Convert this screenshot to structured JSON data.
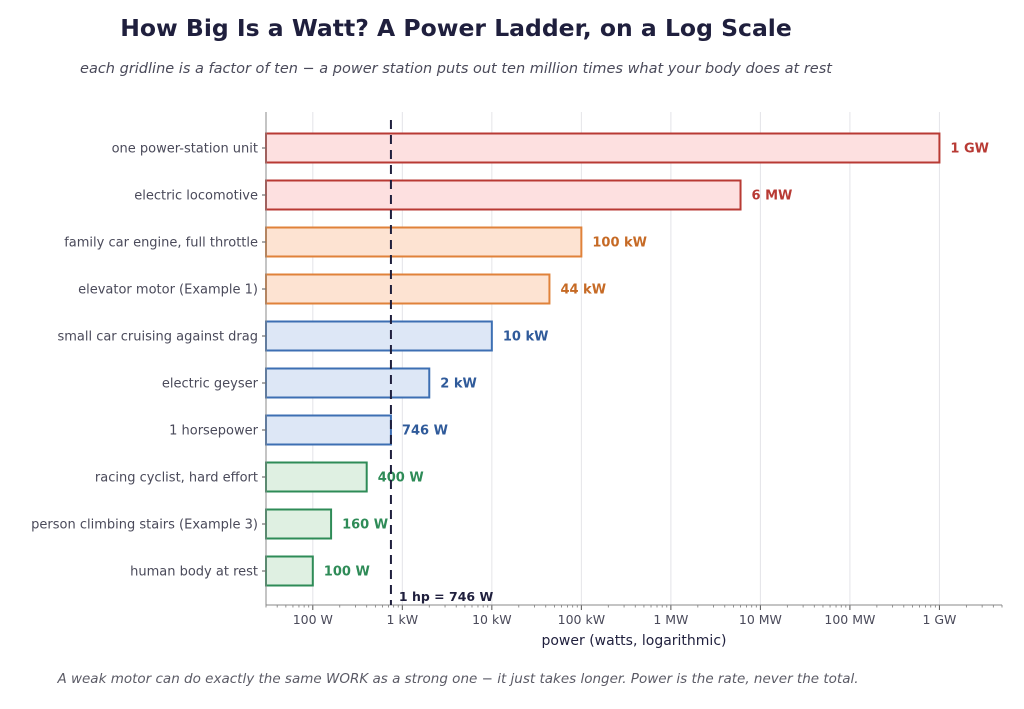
{
  "chart_data": {
    "type": "bar",
    "orientation": "horizontal",
    "title": "How Big Is a Watt?  A Power Ladder, on a Log Scale",
    "subtitle": "each gridline is a factor of ten − a power station puts out ten million times what your body does at rest",
    "xlabel": "power   (watts, logarithmic)",
    "ylabel": "",
    "x_scale": "log",
    "xlim": [
      30,
      5000000000
    ],
    "x_ticks": [
      {
        "value": 100,
        "label": "100 W"
      },
      {
        "value": 1000,
        "label": "1 kW"
      },
      {
        "value": 10000,
        "label": "10 kW"
      },
      {
        "value": 100000,
        "label": "100 kW"
      },
      {
        "value": 1000000,
        "label": "1 MW"
      },
      {
        "value": 10000000,
        "label": "10 MW"
      },
      {
        "value": 100000000,
        "label": "100 MW"
      },
      {
        "value": 1000000000,
        "label": "1 GW"
      }
    ],
    "grid": true,
    "categories": [
      "one power-station unit",
      "electric locomotive",
      "family car engine, full throttle",
      "elevator motor (Example 1)",
      "small car cruising against drag",
      "electric geyser",
      "1 horsepower",
      "racing cyclist, hard effort",
      "person climbing stairs (Example 3)",
      "human body at rest"
    ],
    "values": [
      1000000000,
      6000000,
      100000,
      44000,
      10000,
      2000,
      746,
      400,
      160,
      100
    ],
    "value_labels": [
      "1 GW",
      "6 MW",
      "100 kW",
      "44 kW",
      "10 kW",
      "2 kW",
      "746 W",
      "400 W",
      "160 W",
      "100 W"
    ],
    "bar_colors": [
      {
        "fill": "#fde0e0",
        "stroke": "#b83a34",
        "text": "#b83a34"
      },
      {
        "fill": "#fde0e0",
        "stroke": "#b83a34",
        "text": "#b83a34"
      },
      {
        "fill": "#fde3d2",
        "stroke": "#e0823a",
        "text": "#c66a25"
      },
      {
        "fill": "#fde3d2",
        "stroke": "#e0823a",
        "text": "#c66a25"
      },
      {
        "fill": "#dde7f6",
        "stroke": "#3d6fb3",
        "text": "#2f5a9a"
      },
      {
        "fill": "#dde7f6",
        "stroke": "#3d6fb3",
        "text": "#2f5a9a"
      },
      {
        "fill": "#dde7f6",
        "stroke": "#3d6fb3",
        "text": "#2f5a9a"
      },
      {
        "fill": "#dff0e2",
        "stroke": "#2e8b57",
        "text": "#2e8b57"
      },
      {
        "fill": "#dff0e2",
        "stroke": "#2e8b57",
        "text": "#2e8b57"
      },
      {
        "fill": "#dff0e2",
        "stroke": "#2e8b57",
        "text": "#2e8b57"
      }
    ],
    "reference_line": {
      "value": 746,
      "label": "1 hp = 746 W",
      "color": "#1f1f3d",
      "style": "dashed"
    }
  },
  "footnote": "A weak motor can do exactly the same WORK as a strong one − it just takes longer.  Power is the rate, never the total."
}
